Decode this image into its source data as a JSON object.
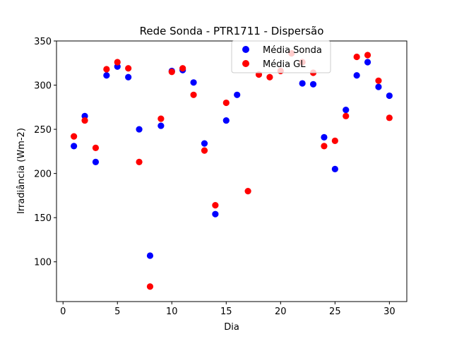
{
  "chart_data": {
    "type": "scatter",
    "title": "Rede Sonda - PTR1711 - Dispersão",
    "xlabel": "Dia",
    "ylabel": "Irradiância (Wm-2)",
    "xlim": [
      -0.6,
      31.6
    ],
    "ylim": [
      55,
      350
    ],
    "xticks": [
      0,
      5,
      10,
      15,
      20,
      25,
      30
    ],
    "yticks": [
      100,
      150,
      200,
      250,
      300,
      350
    ],
    "grid": false,
    "legend_position": "top-right",
    "series": [
      {
        "name": "Média Sonda",
        "color": "#0000ff",
        "x": [
          1,
          2,
          3,
          4,
          5,
          6,
          7,
          8,
          9,
          10,
          11,
          12,
          13,
          14,
          15,
          16,
          22,
          23,
          24,
          25,
          26,
          27,
          28,
          29,
          30
        ],
        "y": [
          231,
          265,
          213,
          311,
          321,
          309,
          250,
          107,
          254,
          316,
          317,
          303,
          234,
          154,
          260,
          289,
          302,
          301,
          241,
          205,
          272,
          311,
          326,
          298,
          288
        ]
      },
      {
        "name": "Média GL",
        "color": "#ff0000",
        "x": [
          1,
          2,
          3,
          4,
          5,
          6,
          7,
          8,
          9,
          10,
          11,
          12,
          13,
          14,
          15,
          17,
          18,
          19,
          20,
          21,
          22,
          23,
          24,
          25,
          26,
          27,
          28,
          29,
          30
        ],
        "y": [
          242,
          260,
          229,
          318,
          326,
          319,
          213,
          72,
          262,
          315,
          319,
          289,
          226,
          164,
          280,
          180,
          312,
          309,
          316,
          336,
          326,
          314,
          231,
          237,
          265,
          332,
          334,
          305,
          263
        ]
      }
    ]
  }
}
